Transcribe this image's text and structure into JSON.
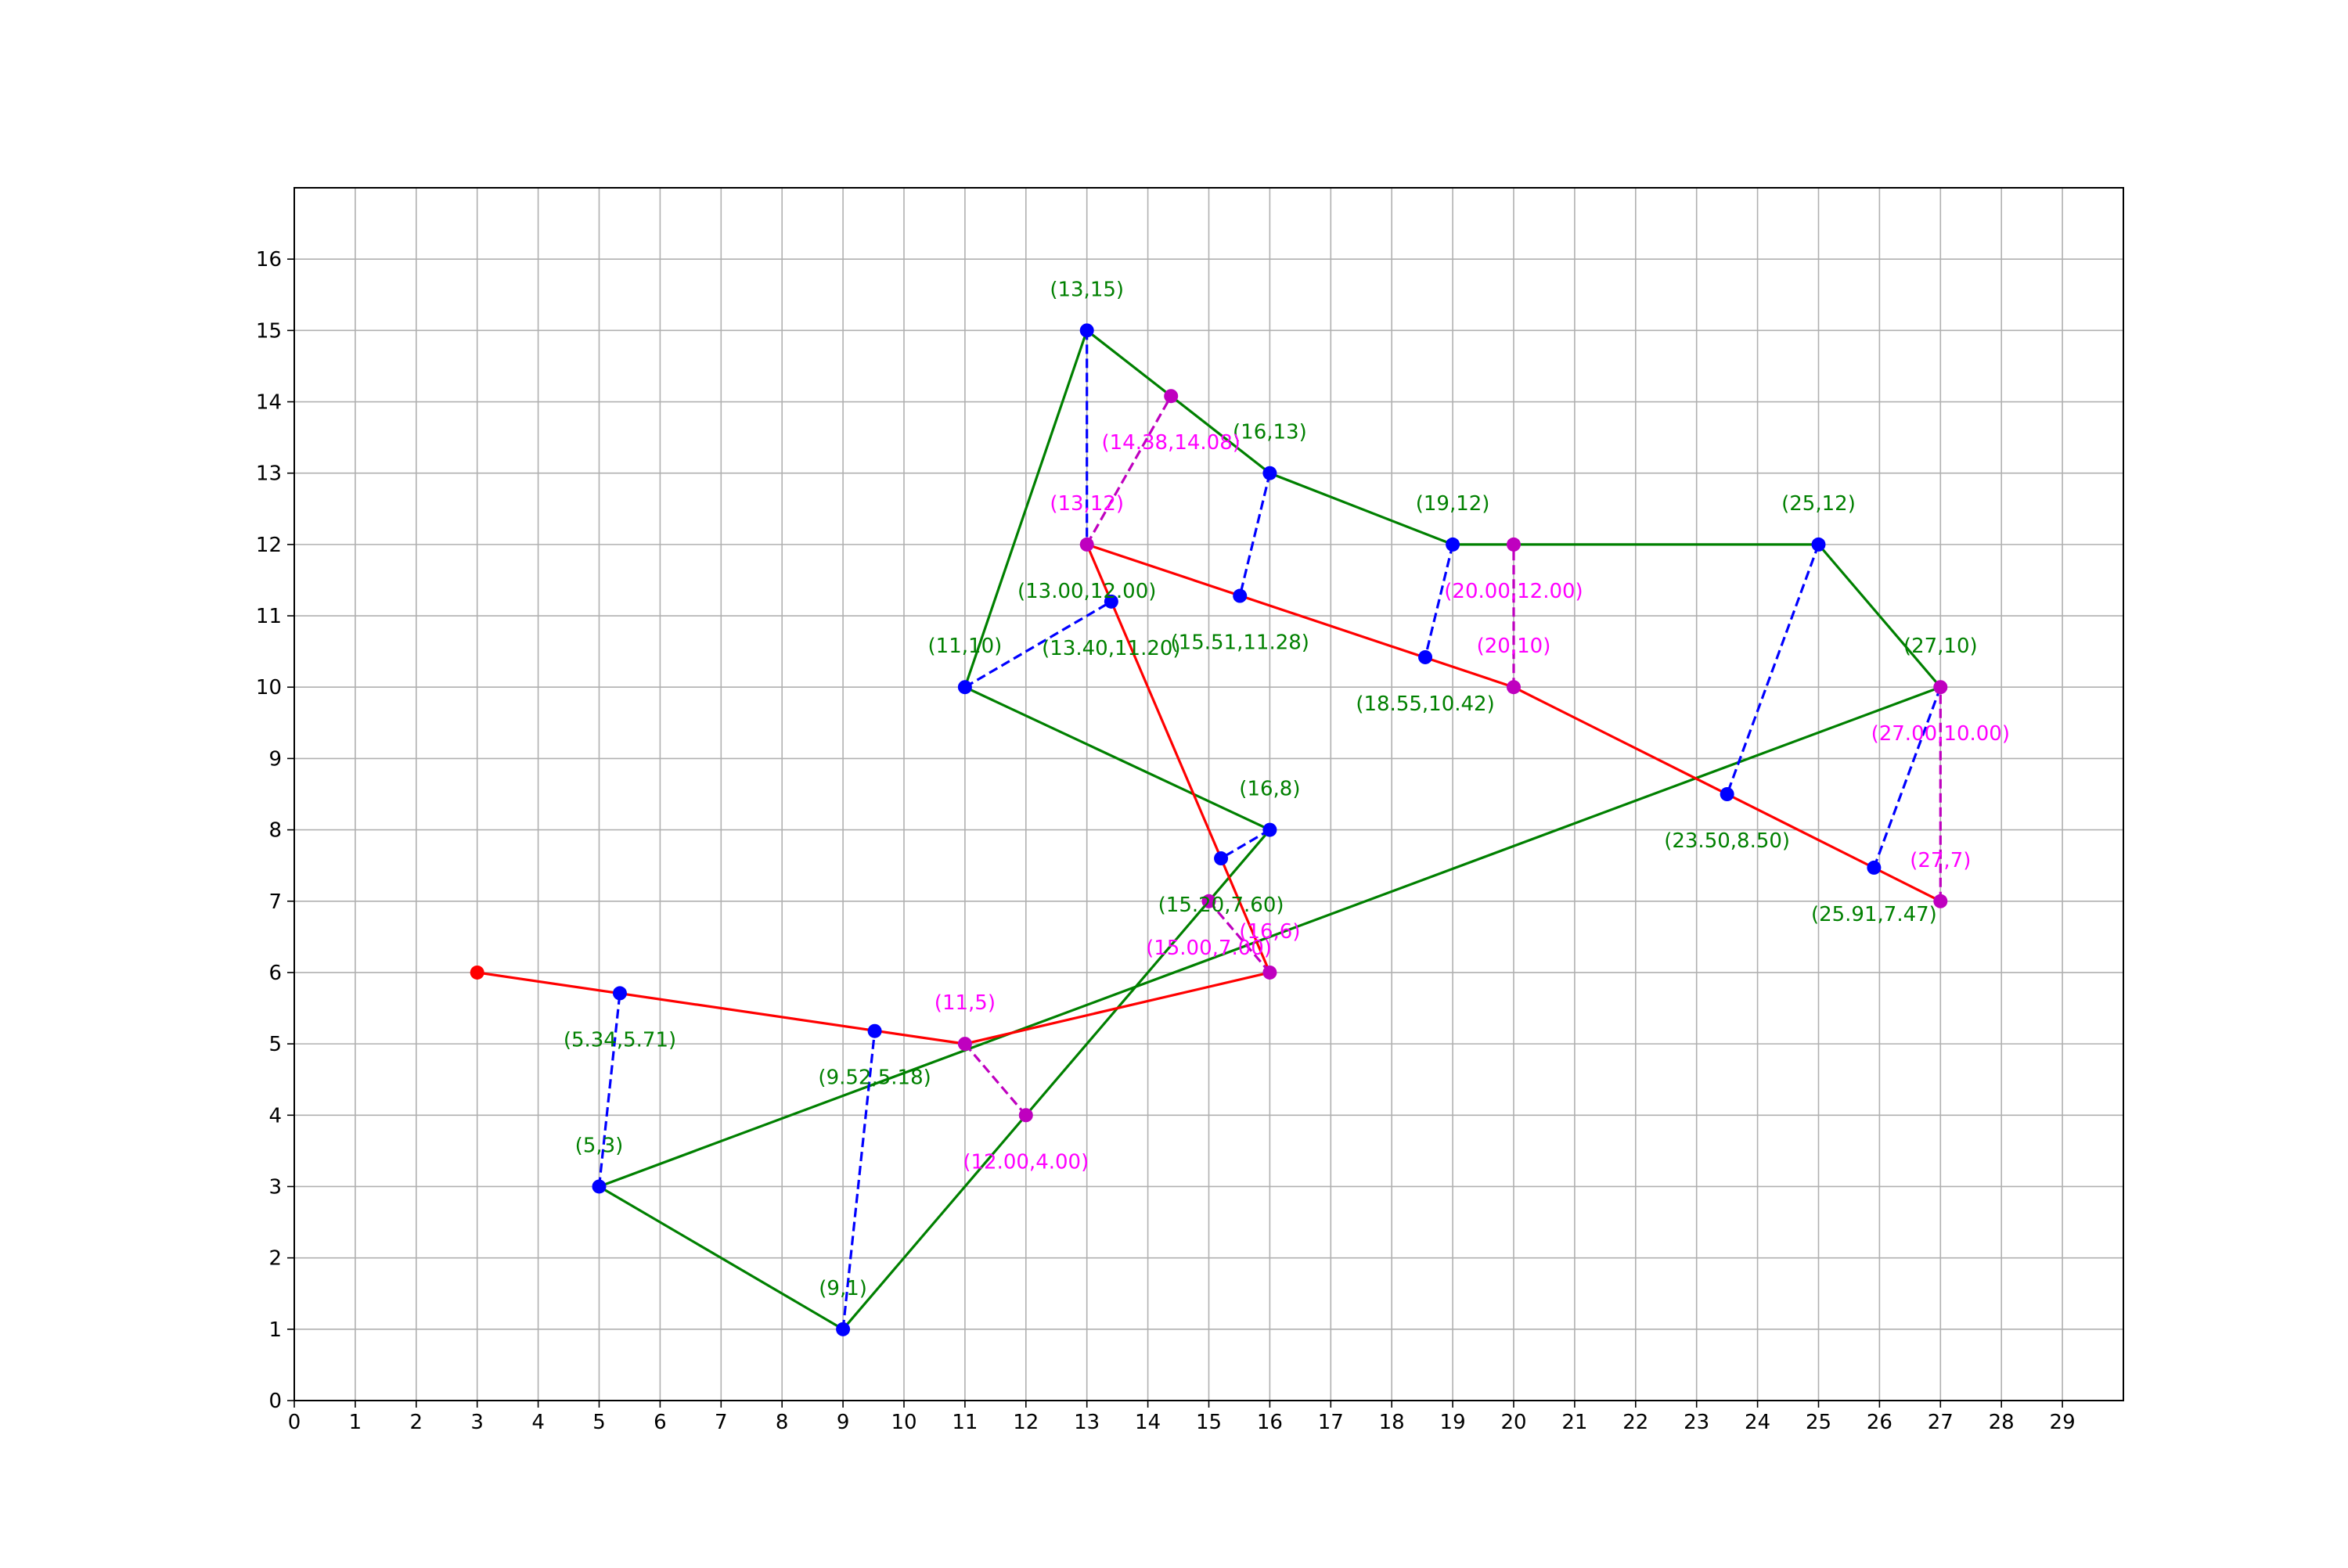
{
  "chart_data": {
    "type": "line",
    "title": "",
    "xlabel": "",
    "ylabel": "",
    "xlim": [
      0,
      30
    ],
    "ylim": [
      0,
      17
    ],
    "xticks": [
      0,
      1,
      2,
      3,
      4,
      5,
      6,
      7,
      8,
      9,
      10,
      11,
      12,
      13,
      14,
      15,
      16,
      17,
      18,
      19,
      20,
      21,
      22,
      23,
      24,
      25,
      26,
      27,
      28,
      29
    ],
    "yticks": [
      0,
      1,
      2,
      3,
      4,
      5,
      6,
      7,
      8,
      9,
      10,
      11,
      12,
      13,
      14,
      15,
      16
    ],
    "grid": true,
    "colors": {
      "polygon": "#008000",
      "path": "#ff0000",
      "blue_point": "#0000ff",
      "magenta_point": "#bf00bf",
      "magenta_label": "#ff00ff",
      "green_label": "#008000"
    },
    "series": [
      {
        "role": "polygon",
        "color": "#008000",
        "closed": true,
        "points": [
          [
            5,
            3
          ],
          [
            9,
            1
          ],
          [
            16,
            8
          ],
          [
            11,
            10
          ],
          [
            13,
            15
          ],
          [
            16,
            13
          ],
          [
            19,
            12
          ],
          [
            25,
            12
          ],
          [
            27,
            10
          ]
        ]
      },
      {
        "role": "path",
        "color": "#ff0000",
        "points": [
          [
            3,
            6
          ],
          [
            11,
            5
          ],
          [
            16,
            6
          ],
          [
            13,
            12
          ],
          [
            20,
            10
          ],
          [
            27,
            7
          ]
        ]
      }
    ],
    "dashed_segments": [
      {
        "color": "#0000ff",
        "from": [
          5,
          3
        ],
        "to": [
          5.34,
          5.71
        ]
      },
      {
        "color": "#0000ff",
        "from": [
          9,
          1
        ],
        "to": [
          9.52,
          5.18
        ]
      },
      {
        "color": "#bf00bf",
        "from": [
          11,
          5
        ],
        "to": [
          12.0,
          4.0
        ]
      },
      {
        "color": "#0000ff",
        "from": [
          16,
          8
        ],
        "to": [
          15.2,
          7.6
        ]
      },
      {
        "color": "#bf00bf",
        "from": [
          16,
          6
        ],
        "to": [
          15.0,
          7.0
        ]
      },
      {
        "color": "#0000ff",
        "from": [
          11,
          10
        ],
        "to": [
          13.4,
          11.2
        ]
      },
      {
        "color": "#0000ff",
        "from": [
          13,
          15
        ],
        "to": [
          13.0,
          12.0
        ]
      },
      {
        "color": "#bf00bf",
        "from": [
          13,
          12
        ],
        "to": [
          14.38,
          14.08
        ]
      },
      {
        "color": "#0000ff",
        "from": [
          16,
          13
        ],
        "to": [
          15.51,
          11.28
        ]
      },
      {
        "color": "#0000ff",
        "from": [
          19,
          12
        ],
        "to": [
          18.55,
          10.42
        ]
      },
      {
        "color": "#bf00bf",
        "from": [
          20,
          10
        ],
        "to": [
          20.0,
          12.0
        ]
      },
      {
        "color": "#0000ff",
        "from": [
          25,
          12
        ],
        "to": [
          23.5,
          8.5
        ]
      },
      {
        "color": "#0000ff",
        "from": [
          27,
          10
        ],
        "to": [
          25.91,
          7.47
        ]
      },
      {
        "color": "#bf00bf",
        "from": [
          27,
          7
        ],
        "to": [
          27.0,
          10.0
        ]
      }
    ],
    "points": [
      {
        "x": 3,
        "y": 6,
        "color": "#ff0000"
      },
      {
        "x": 5,
        "y": 3,
        "color": "#0000ff"
      },
      {
        "x": 9,
        "y": 1,
        "color": "#0000ff"
      },
      {
        "x": 16,
        "y": 8,
        "color": "#0000ff"
      },
      {
        "x": 11,
        "y": 10,
        "color": "#0000ff"
      },
      {
        "x": 13,
        "y": 15,
        "color": "#0000ff"
      },
      {
        "x": 16,
        "y": 13,
        "color": "#0000ff"
      },
      {
        "x": 19,
        "y": 12,
        "color": "#0000ff"
      },
      {
        "x": 25,
        "y": 12,
        "color": "#0000ff"
      },
      {
        "x": 5.34,
        "y": 5.71,
        "color": "#0000ff"
      },
      {
        "x": 9.52,
        "y": 5.18,
        "color": "#0000ff"
      },
      {
        "x": 15.2,
        "y": 7.6,
        "color": "#0000ff"
      },
      {
        "x": 13.4,
        "y": 11.2,
        "color": "#0000ff"
      },
      {
        "x": 15.51,
        "y": 11.28,
        "color": "#0000ff"
      },
      {
        "x": 18.55,
        "y": 10.42,
        "color": "#0000ff"
      },
      {
        "x": 23.5,
        "y": 8.5,
        "color": "#0000ff"
      },
      {
        "x": 25.91,
        "y": 7.47,
        "color": "#0000ff"
      },
      {
        "x": 11,
        "y": 5,
        "color": "#bf00bf"
      },
      {
        "x": 16,
        "y": 6,
        "color": "#bf00bf"
      },
      {
        "x": 13,
        "y": 12,
        "color": "#bf00bf"
      },
      {
        "x": 20,
        "y": 10,
        "color": "#bf00bf"
      },
      {
        "x": 27,
        "y": 7,
        "color": "#bf00bf"
      },
      {
        "x": 12,
        "y": 4,
        "color": "#bf00bf"
      },
      {
        "x": 15,
        "y": 7,
        "color": "#bf00bf"
      },
      {
        "x": 14.38,
        "y": 14.08,
        "color": "#bf00bf"
      },
      {
        "x": 20,
        "y": 12,
        "color": "#bf00bf"
      },
      {
        "x": 27,
        "y": 10,
        "color": "#bf00bf"
      }
    ],
    "annotations": [
      {
        "text": "(5,3)",
        "x": 5,
        "y": 3,
        "placement": "above",
        "color": "#008000"
      },
      {
        "text": "(9,1)",
        "x": 9,
        "y": 1,
        "placement": "above",
        "color": "#008000"
      },
      {
        "text": "(16,8)",
        "x": 16,
        "y": 8,
        "placement": "above",
        "color": "#008000"
      },
      {
        "text": "(11,10)",
        "x": 11,
        "y": 10,
        "placement": "above",
        "color": "#008000"
      },
      {
        "text": "(13,15)",
        "x": 13,
        "y": 15,
        "placement": "above",
        "color": "#008000"
      },
      {
        "text": "(16,13)",
        "x": 16,
        "y": 13,
        "placement": "above",
        "color": "#008000"
      },
      {
        "text": "(19,12)",
        "x": 19,
        "y": 12,
        "placement": "above",
        "color": "#008000"
      },
      {
        "text": "(25,12)",
        "x": 25,
        "y": 12,
        "placement": "above",
        "color": "#008000"
      },
      {
        "text": "(27,10)",
        "x": 27,
        "y": 10,
        "placement": "above",
        "color": "#008000"
      },
      {
        "text": "(11,5)",
        "x": 11,
        "y": 5,
        "placement": "above",
        "color": "#ff00ff"
      },
      {
        "text": "(16,6)",
        "x": 16,
        "y": 6,
        "placement": "above",
        "color": "#ff00ff"
      },
      {
        "text": "(13,12)",
        "x": 13,
        "y": 12,
        "placement": "above",
        "color": "#ff00ff"
      },
      {
        "text": "(20,10)",
        "x": 20,
        "y": 10,
        "placement": "above",
        "color": "#ff00ff"
      },
      {
        "text": "(27,7)",
        "x": 27,
        "y": 7,
        "placement": "above",
        "color": "#ff00ff"
      },
      {
        "text": "(5.34,5.71)",
        "x": 5.34,
        "y": 5.71,
        "placement": "below",
        "color": "#008000"
      },
      {
        "text": "(9.52,5.18)",
        "x": 9.52,
        "y": 5.18,
        "placement": "below",
        "color": "#008000"
      },
      {
        "text": "(15.20,7.60)",
        "x": 15.2,
        "y": 7.6,
        "placement": "below",
        "color": "#008000"
      },
      {
        "text": "(13.40,11.20)",
        "x": 13.4,
        "y": 11.2,
        "placement": "below",
        "color": "#008000"
      },
      {
        "text": "(15.51,11.28)",
        "x": 15.51,
        "y": 11.28,
        "placement": "below",
        "color": "#008000"
      },
      {
        "text": "(18.55,10.42)",
        "x": 18.55,
        "y": 10.42,
        "placement": "below",
        "color": "#008000"
      },
      {
        "text": "(23.50,8.50)",
        "x": 23.5,
        "y": 8.5,
        "placement": "below",
        "color": "#008000"
      },
      {
        "text": "(25.91,7.47)",
        "x": 25.91,
        "y": 7.47,
        "placement": "below",
        "color": "#008000"
      },
      {
        "text": "(13.00,12.00)",
        "x": 13.0,
        "y": 12.0,
        "placement": "below",
        "color": "#008000"
      },
      {
        "text": "(12.00,4.00)",
        "x": 12.0,
        "y": 4.0,
        "placement": "below",
        "color": "#ff00ff"
      },
      {
        "text": "(15.00,7.00)",
        "x": 15.0,
        "y": 7.0,
        "placement": "below",
        "color": "#ff00ff"
      },
      {
        "text": "(14.38,14.08)",
        "x": 14.38,
        "y": 14.08,
        "placement": "below",
        "color": "#ff00ff"
      },
      {
        "text": "(20.00,12.00)",
        "x": 20.0,
        "y": 12.0,
        "placement": "below",
        "color": "#ff00ff"
      },
      {
        "text": "(27.00,10.00)",
        "x": 27.0,
        "y": 10.0,
        "placement": "below",
        "color": "#ff00ff"
      }
    ]
  }
}
